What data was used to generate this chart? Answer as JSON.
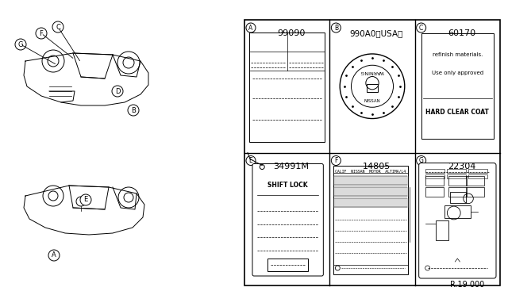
{
  "bg_color": "#ffffff",
  "line_color": "#000000",
  "light_gray": "#aaaaaa",
  "mid_gray": "#888888",
  "fig_width": 6.4,
  "fig_height": 3.72,
  "footer_text": "R.19 000",
  "panel_A_number": "99090",
  "panel_B_number": "990A0（USA）",
  "panel_C_number": "60170",
  "panel_E_number": "34991M",
  "panel_F_number": "14805",
  "panel_G_number": "22304",
  "panel_C_line1": "HARD CLEAR COAT",
  "panel_C_line2": "Use only approved",
  "panel_C_line3": "refinish materials.",
  "panel_E_label": "SHIFT LOCK"
}
